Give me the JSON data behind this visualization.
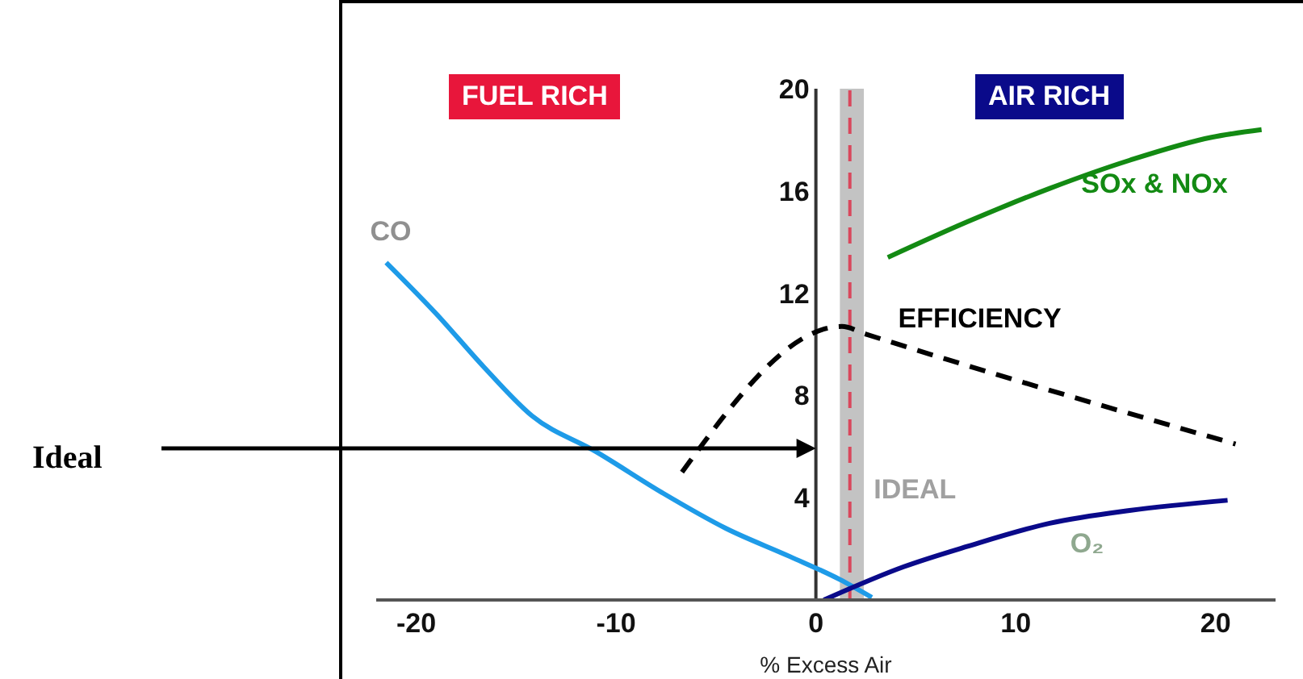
{
  "chart_data": {
    "type": "line",
    "xlabel": "% Excess Air",
    "xlim": [
      -22,
      23
    ],
    "xticks": [
      -20,
      -10,
      0,
      10,
      20
    ],
    "ylim": [
      0,
      20
    ],
    "yticks": [
      4,
      8,
      12,
      16,
      20
    ],
    "marker": "none",
    "series": [
      {
        "name": "CO",
        "color": "#1e9be8",
        "x": [
          -21.5,
          -19,
          -16.6,
          -14.2,
          -11,
          -7.7,
          -4.5,
          -1.3,
          1.2,
          2.8
        ],
        "values": [
          13.2,
          11.2,
          9.1,
          7.2,
          5.8,
          4.2,
          2.8,
          1.7,
          0.8,
          0.1
        ]
      },
      {
        "name": "EFFICIENCY",
        "color": "#000000",
        "line_style": "dashed",
        "x": [
          -6.7,
          1.3,
          2.5,
          21
        ],
        "values": [
          5.0,
          10.7,
          10.4,
          6.1
        ]
      },
      {
        "name": "SOx & NOx",
        "color": "#138a13",
        "x": [
          3.6,
          7.6,
          11.7,
          15.7,
          19.8,
          22.3
        ],
        "values": [
          13.4,
          14.8,
          16.1,
          17.2,
          18.1,
          18.4
        ]
      },
      {
        "name": "O₂",
        "color": "#0a0a8a",
        "x": [
          0.4,
          4.4,
          7.6,
          11.7,
          15.7,
          20.6
        ],
        "values": [
          0,
          1.3,
          2.1,
          3.0,
          3.5,
          3.9
        ]
      }
    ],
    "bands": [
      {
        "axis": "x",
        "from": 1.2,
        "to": 2.4,
        "label": "IDEAL",
        "color": "#bdbdbd"
      }
    ],
    "ref_lines": [
      {
        "axis": "x",
        "value": 1.7,
        "color": "#d9475c",
        "line_style": "dashed"
      }
    ],
    "annotations": [
      "FUEL RICH",
      "AIR RICH",
      "Ideal"
    ]
  }
}
